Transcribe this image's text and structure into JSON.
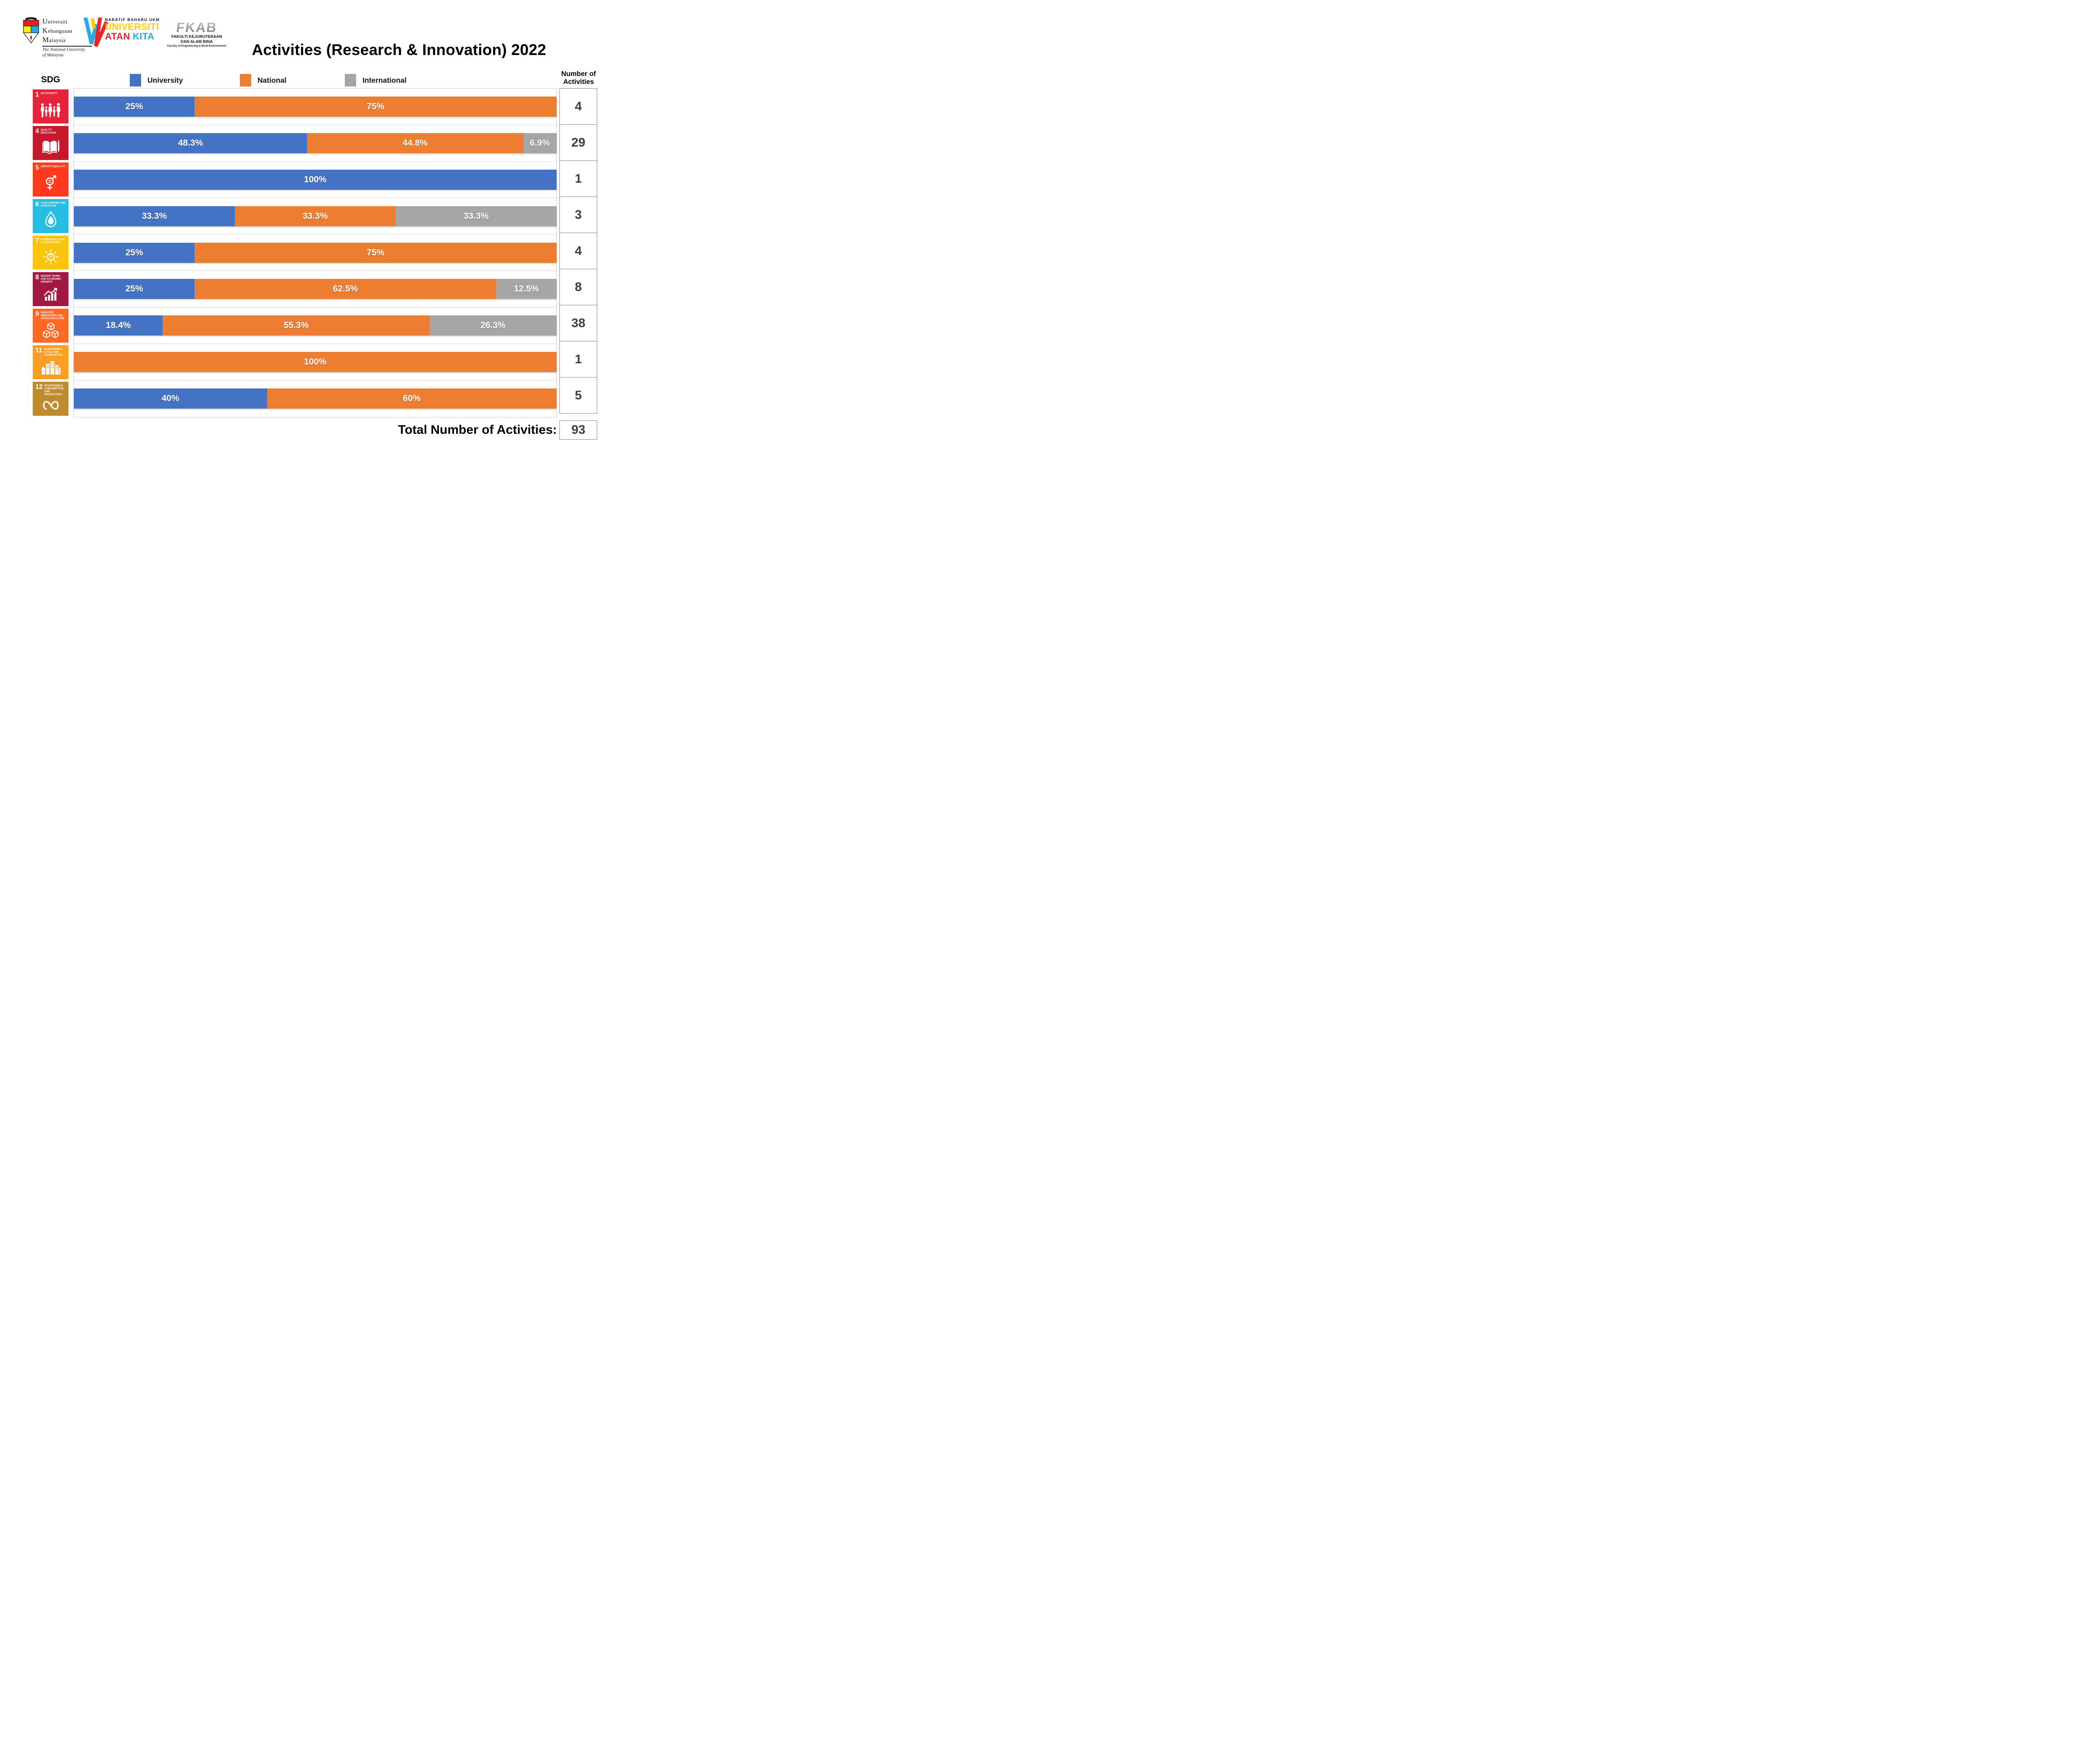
{
  "header": {
    "title": "Activities (Research & Innovation) 2022",
    "logos": {
      "ukm": {
        "name_line1": "Universiti",
        "name_line2": "Kebangsaan",
        "name_line3": "Malaysia",
        "tagline_line1": "The National University",
        "tagline_line2": "of Malaysia"
      },
      "watan": {
        "top": "NARATIF BAHARU UKM",
        "line1": "UNIVERSITI",
        "line2a": "ATAN",
        "line2b": "KITA"
      },
      "fkab": {
        "acronym": "FKAB",
        "line1": "FAKULTI KEJURUTERAAN",
        "line2": "DAN ALAM BINA",
        "line3": "Faculty of Engineering & Built Environment"
      }
    }
  },
  "legend": {
    "axis_label": "SDG",
    "items": [
      {
        "label": "University",
        "color": "#4472C4"
      },
      {
        "label": "National",
        "color": "#ED7D31"
      },
      {
        "label": "International",
        "color": "#A5A5A5"
      }
    ]
  },
  "columns": {
    "number_header_line1": "Number of",
    "number_header_line2": "Activities"
  },
  "chart_data": {
    "type": "bar",
    "orientation": "horizontal",
    "stacked": true,
    "units": "percent",
    "title": "Activities (Research & Innovation) 2022",
    "series": [
      "University",
      "National",
      "International"
    ],
    "series_colors": {
      "University": "#4472C4",
      "National": "#ED7D31",
      "International": "#A5A5A5"
    },
    "legend_position": "top",
    "rows": [
      {
        "sdg_number": "1",
        "sdg_title": "NO POVERTY",
        "color": "#E5243B",
        "icon": "family",
        "segments": [
          {
            "series": "University",
            "value": 25,
            "label": "25%"
          },
          {
            "series": "National",
            "value": 75,
            "label": "75%"
          }
        ],
        "activities": 4
      },
      {
        "sdg_number": "4",
        "sdg_title": "QUALITY EDUCATION",
        "color": "#C5192D",
        "icon": "book",
        "segments": [
          {
            "series": "University",
            "value": 48.3,
            "label": "48.3%"
          },
          {
            "series": "National",
            "value": 44.8,
            "label": "44.8%"
          },
          {
            "series": "International",
            "value": 6.9,
            "label": "6.9%"
          }
        ],
        "activities": 29
      },
      {
        "sdg_number": "5",
        "sdg_title": "GENDER EQUALITY",
        "color": "#FF3A21",
        "icon": "gender",
        "segments": [
          {
            "series": "University",
            "value": 100,
            "label": "100%"
          }
        ],
        "activities": 1
      },
      {
        "sdg_number": "6",
        "sdg_title": "CLEAN WATER AND SANITATION",
        "color": "#26BDE2",
        "icon": "water",
        "segments": [
          {
            "series": "University",
            "value": 33.3,
            "label": "33.3%"
          },
          {
            "series": "National",
            "value": 33.3,
            "label": "33.3%"
          },
          {
            "series": "International",
            "value": 33.3,
            "label": "33.3%"
          }
        ],
        "activities": 3
      },
      {
        "sdg_number": "7",
        "sdg_title": "AFFORDABLE AND CLEAN ENERGY",
        "color": "#FCC30B",
        "icon": "energy",
        "segments": [
          {
            "series": "University",
            "value": 25,
            "label": "25%"
          },
          {
            "series": "National",
            "value": 75,
            "label": "75%"
          }
        ],
        "activities": 4
      },
      {
        "sdg_number": "8",
        "sdg_title": "DECENT WORK AND ECONOMIC GROWTH",
        "color": "#A21942",
        "icon": "growth",
        "segments": [
          {
            "series": "University",
            "value": 25,
            "label": "25%"
          },
          {
            "series": "National",
            "value": 62.5,
            "label": "62.5%"
          },
          {
            "series": "International",
            "value": 12.5,
            "label": "12.5%"
          }
        ],
        "activities": 8
      },
      {
        "sdg_number": "9",
        "sdg_title": "INDUSTRY, INNOVATION AND INFRASTRUCTURE",
        "color": "#FD6925",
        "icon": "industry",
        "segments": [
          {
            "series": "University",
            "value": 18.4,
            "label": "18.4%"
          },
          {
            "series": "National",
            "value": 55.3,
            "label": "55.3%"
          },
          {
            "series": "International",
            "value": 26.3,
            "label": "26.3%"
          }
        ],
        "activities": 38
      },
      {
        "sdg_number": "11",
        "sdg_title": "SUSTAINABLE CITIES AND COMMUNITIES",
        "color": "#FD9D24",
        "icon": "city",
        "segments": [
          {
            "series": "National",
            "value": 100,
            "label": "100%"
          }
        ],
        "activities": 1
      },
      {
        "sdg_number": "12",
        "sdg_title": "RESPONSIBLE CONSUMPTION AND PRODUCTION",
        "color": "#BF8B2E",
        "icon": "infinity",
        "segments": [
          {
            "series": "University",
            "value": 40,
            "label": "40%"
          },
          {
            "series": "National",
            "value": 60,
            "label": "60%"
          }
        ],
        "activities": 5
      }
    ],
    "total": {
      "label": "Total Number of Activities:",
      "value": 93
    }
  }
}
